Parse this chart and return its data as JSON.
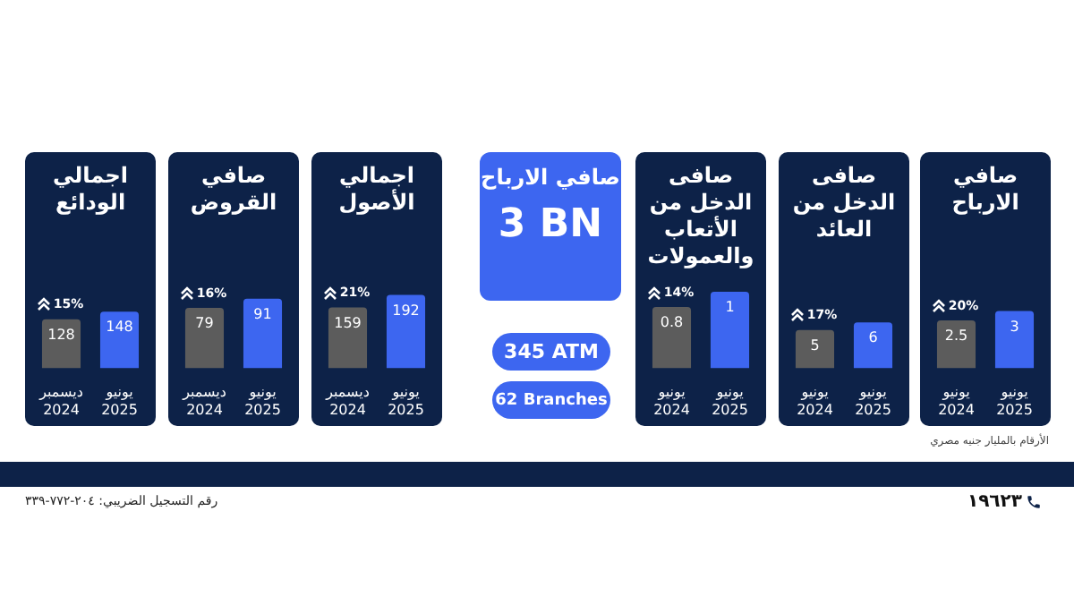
{
  "chart_data": [
    {
      "type": "bar",
      "title": "اجمالي الودائع",
      "categories": [
        "ديسمبر 2024",
        "يونيو 2025"
      ],
      "values": [
        128,
        148
      ],
      "colors": [
        "#5c5c5c",
        "#3d66f0"
      ],
      "data_labels": true,
      "annotations": [
        "15%"
      ],
      "tick_labels": "x"
    },
    {
      "type": "bar",
      "title": "صافي القروض",
      "categories": [
        "ديسمبر 2024",
        "يونيو 2025"
      ],
      "values": [
        79,
        91
      ],
      "colors": [
        "#5c5c5c",
        "#3d66f0"
      ],
      "data_labels": true,
      "annotations": [
        "16%"
      ],
      "tick_labels": "x"
    },
    {
      "type": "bar",
      "title": "اجمالي الأصول",
      "categories": [
        "ديسمبر 2024",
        "يونيو 2025"
      ],
      "values": [
        159,
        192
      ],
      "colors": [
        "#5c5c5c",
        "#3d66f0"
      ],
      "data_labels": true,
      "annotations": [
        "21%"
      ],
      "tick_labels": "x"
    },
    {
      "type": "other",
      "title": "صافي الارباح",
      "annotations": [
        "3 BN",
        "345 ATM",
        "62 Branches",
        "الأرقام بالمليار جنيه مصري",
        "رقم التسجيل الضريبي: ٢٠٤-٧٧٢-٣٣٩",
        "١٩٦٢٣"
      ]
    },
    {
      "type": "bar",
      "title": "صافى الدخل من الأتعاب والعمولات",
      "categories": [
        "يونيو 2024",
        "يونيو 2025"
      ],
      "values": [
        0.8,
        1
      ],
      "colors": [
        "#5c5c5c",
        "#3d66f0"
      ],
      "data_labels": true,
      "annotations": [
        "14%"
      ],
      "tick_labels": "x"
    },
    {
      "type": "bar",
      "title": "صافى الدخل من العائد",
      "categories": [
        "يونيو 2024",
        "يونيو 2025"
      ],
      "values": [
        5,
        6
      ],
      "colors": [
        "#5c5c5c",
        "#3d66f0"
      ],
      "data_labels": true,
      "annotations": [
        "17%"
      ],
      "tick_labels": "x"
    },
    {
      "type": "bar",
      "title": "صافي الارباح",
      "categories": [
        "يونيو 2024",
        "يونيو 2025"
      ],
      "values": [
        2.5,
        3
      ],
      "colors": [
        "#5c5c5c",
        "#3d66f0"
      ],
      "data_labels": true,
      "annotations": [
        "20%"
      ],
      "tick_labels": "x"
    }
  ]
}
